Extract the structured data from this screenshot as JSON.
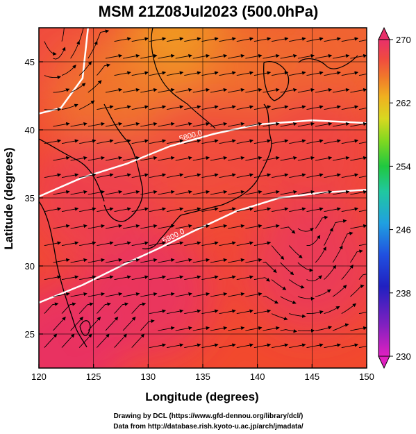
{
  "title": "MSM 21Z08Jul2023 (500.0hPa)",
  "credits": [
    "Drawing by DCL (https://www.gfd-dennou.org/library/dcl/)",
    "Data from http://database.rish.kyoto-u.ac.jp/arch/jmadata/"
  ],
  "chart_data": {
    "type": "heatmap",
    "xlabel": "Longitude (degrees)",
    "ylabel": "Latitude  (degrees)",
    "xlim": [
      120,
      150
    ],
    "ylim": [
      22.5,
      47.5
    ],
    "xticks": [
      "120",
      "125",
      "130",
      "135",
      "140",
      "145",
      "150"
    ],
    "yticks": [
      "25",
      "30",
      "35",
      "40",
      "45"
    ],
    "grid": true,
    "colorbar": {
      "range": [
        230,
        270
      ],
      "ticks": [
        "270",
        "262",
        "254",
        "246",
        "238",
        "230"
      ],
      "colors": [
        "#e8306a",
        "#f04a40",
        "#f07a2a",
        "#f0b020",
        "#d8d820",
        "#80d820",
        "#20c840",
        "#20c8a0",
        "#20a0e0",
        "#2050e0",
        "#2020c0",
        "#8020c0",
        "#e020c0"
      ]
    },
    "contours": [
      {
        "label": "5800.0",
        "points": [
          [
            120,
            35.1
          ],
          [
            124,
            36.5
          ],
          [
            128,
            37.5
          ],
          [
            132,
            38.8
          ],
          [
            136,
            39.7
          ],
          [
            140,
            40.4
          ],
          [
            145,
            40.7
          ],
          [
            150,
            40.5
          ]
        ]
      },
      {
        "label": "5900.0",
        "points": [
          [
            120,
            27.3
          ],
          [
            124,
            28.6
          ],
          [
            128,
            30.2
          ],
          [
            131,
            31.3
          ],
          [
            134,
            32.5
          ],
          [
            138,
            34.0
          ],
          [
            142,
            35.0
          ],
          [
            146,
            35.4
          ],
          [
            150,
            35.6
          ]
        ]
      },
      {
        "label": "",
        "points": [
          [
            120,
            41.2
          ],
          [
            122,
            41.6
          ],
          [
            124,
            43.8
          ],
          [
            124.5,
            47.5
          ]
        ]
      }
    ],
    "temperature_field": [
      {
        "lon": 121,
        "lat": 46,
        "value": 266.5
      },
      {
        "lon": 133,
        "lat": 45,
        "value": 260.5
      },
      {
        "lon": 127,
        "lat": 42,
        "value": 263.5
      },
      {
        "lon": 140,
        "lat": 44,
        "value": 264.0
      },
      {
        "lon": 148,
        "lat": 46,
        "value": 264.5
      },
      {
        "lon": 135,
        "lat": 38,
        "value": 266.5
      },
      {
        "lon": 125,
        "lat": 35,
        "value": 268.0
      },
      {
        "lon": 145,
        "lat": 38,
        "value": 267.0
      },
      {
        "lon": 130,
        "lat": 28,
        "value": 269.5
      },
      {
        "lon": 145,
        "lat": 30,
        "value": 269.0
      },
      {
        "lon": 122,
        "lat": 24,
        "value": 270.0
      }
    ]
  }
}
